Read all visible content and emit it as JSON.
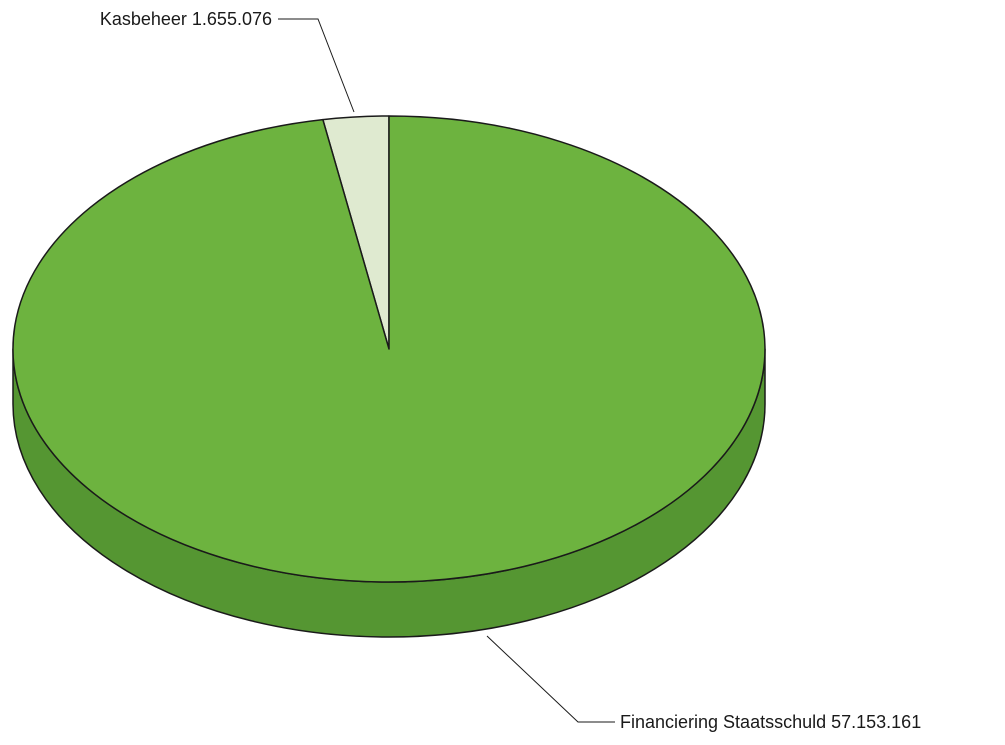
{
  "chart_data": {
    "type": "pie",
    "style": "3d",
    "slices": [
      {
        "label": "Kasbeheer",
        "value": 1655076,
        "value_text": "1.655.076",
        "color": "#dfead0",
        "side_color": "#c7d6b3"
      },
      {
        "label": "Financiering Staatsschuld",
        "value": 57153161,
        "value_text": "57.153.161",
        "color": "#6db33f",
        "side_color": "#559632"
      }
    ]
  }
}
